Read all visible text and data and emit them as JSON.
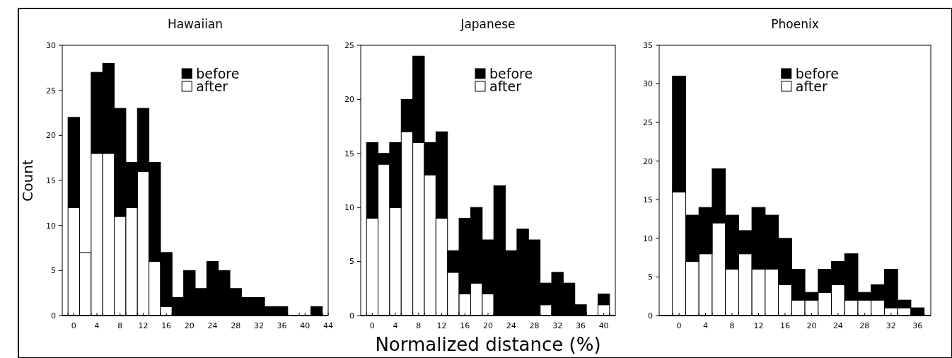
{
  "chart_data": [
    {
      "type": "bar",
      "stacked": true,
      "title": "Hawaiian",
      "ylabel": "Count",
      "x": [
        0,
        2,
        4,
        6,
        8,
        10,
        12,
        14,
        16,
        18,
        20,
        22,
        24,
        26,
        28,
        30,
        32,
        34,
        36,
        38,
        40,
        42
      ],
      "xlim": [
        -2,
        44
      ],
      "xticks": [
        0,
        4,
        8,
        12,
        16,
        20,
        24,
        28,
        32,
        36,
        40,
        44
      ],
      "ylim": [
        0,
        30
      ],
      "yticks": [
        0,
        5,
        10,
        15,
        20,
        25,
        30
      ],
      "legend": "top right",
      "series": [
        {
          "name": "after",
          "color": "#ffffff",
          "values": [
            12,
            7,
            18,
            18,
            11,
            12,
            16,
            6,
            1,
            0,
            0,
            0,
            0,
            0,
            0,
            0,
            0,
            0,
            0,
            0,
            0,
            0
          ]
        },
        {
          "name": "before",
          "color": "#000000",
          "values": [
            10,
            0,
            9,
            10,
            12,
            5,
            7,
            11,
            6,
            2,
            5,
            3,
            6,
            5,
            3,
            2,
            2,
            1,
            1,
            0,
            0,
            1
          ]
        }
      ]
    },
    {
      "type": "bar",
      "stacked": true,
      "title": "Japanese",
      "xlabel": "Normalized distance (%)",
      "x": [
        0,
        2,
        4,
        6,
        8,
        10,
        12,
        14,
        16,
        18,
        20,
        22,
        24,
        26,
        28,
        30,
        32,
        34,
        36,
        38,
        40
      ],
      "xlim": [
        -2,
        42
      ],
      "xticks": [
        0,
        4,
        8,
        12,
        16,
        20,
        24,
        28,
        32,
        36,
        40
      ],
      "ylim": [
        0,
        25
      ],
      "yticks": [
        0,
        5,
        10,
        15,
        20,
        25
      ],
      "legend": "top right",
      "series": [
        {
          "name": "after",
          "color": "#ffffff",
          "values": [
            9,
            14,
            10,
            17,
            16,
            13,
            9,
            4,
            2,
            3,
            2,
            0,
            0,
            0,
            0,
            1,
            0,
            0,
            0,
            0,
            1
          ]
        },
        {
          "name": "before",
          "color": "#000000",
          "values": [
            7,
            1,
            6,
            3,
            8,
            3,
            8,
            2,
            7,
            7,
            5,
            12,
            6,
            8,
            7,
            2,
            4,
            3,
            1,
            0,
            1
          ]
        }
      ]
    },
    {
      "type": "bar",
      "stacked": true,
      "title": "Phoenix",
      "x": [
        0,
        2,
        4,
        6,
        8,
        10,
        12,
        14,
        16,
        18,
        20,
        22,
        24,
        26,
        28,
        30,
        32,
        34,
        36
      ],
      "xlim": [
        -3,
        38
      ],
      "xticks": [
        0,
        4,
        8,
        12,
        16,
        20,
        24,
        28,
        32,
        36
      ],
      "ylim": [
        0,
        35
      ],
      "yticks": [
        0,
        5,
        10,
        15,
        20,
        25,
        30,
        35
      ],
      "legend": "top right",
      "series": [
        {
          "name": "after",
          "color": "#ffffff",
          "values": [
            16,
            7,
            8,
            12,
            6,
            8,
            6,
            6,
            4,
            2,
            2,
            3,
            4,
            2,
            2,
            2,
            1,
            1,
            0
          ]
        },
        {
          "name": "before",
          "color": "#000000",
          "values": [
            15,
            6,
            6,
            7,
            7,
            3,
            8,
            7,
            6,
            4,
            1,
            3,
            3,
            6,
            1,
            2,
            5,
            1,
            1
          ]
        }
      ]
    }
  ]
}
